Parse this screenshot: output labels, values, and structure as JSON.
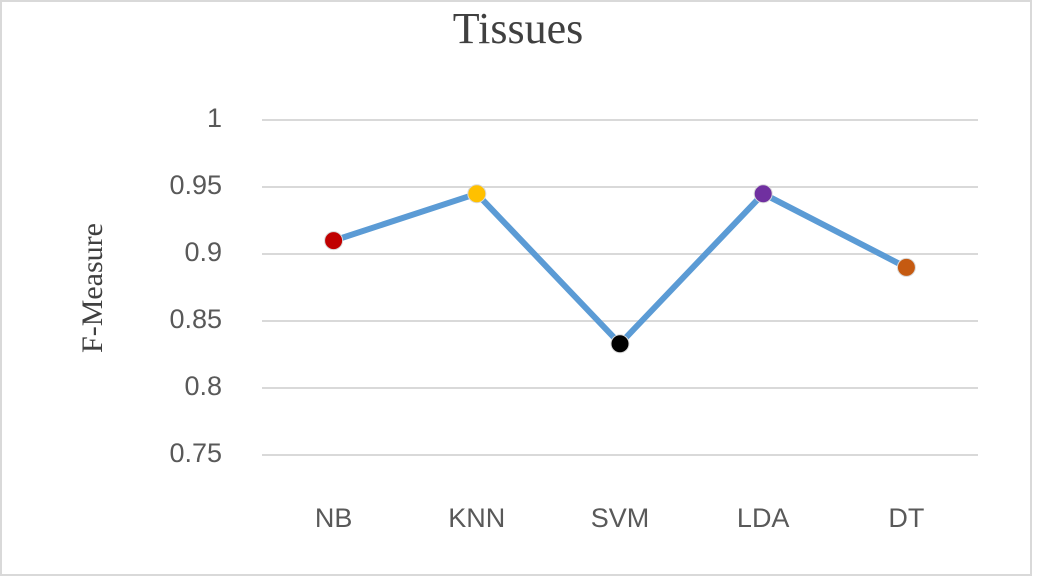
{
  "chart_data": {
    "type": "line",
    "title": "Tissues",
    "y_label": "F-Measure",
    "categories": [
      "NB",
      "KNN",
      "SVM",
      "LDA",
      "DT"
    ],
    "series": [
      {
        "color": "#5b9bd5",
        "values": [
          0.91,
          0.945,
          0.833,
          0.945,
          0.89
        ],
        "marker_colors": [
          "#c00000",
          "#ffc000",
          "#000000",
          "#7030a0",
          "#c55a11"
        ]
      }
    ],
    "ylim": [
      0.75,
      1
    ],
    "yticks": [
      0.75,
      0.8,
      0.85,
      0.9,
      0.95,
      1
    ],
    "grid": true
  }
}
